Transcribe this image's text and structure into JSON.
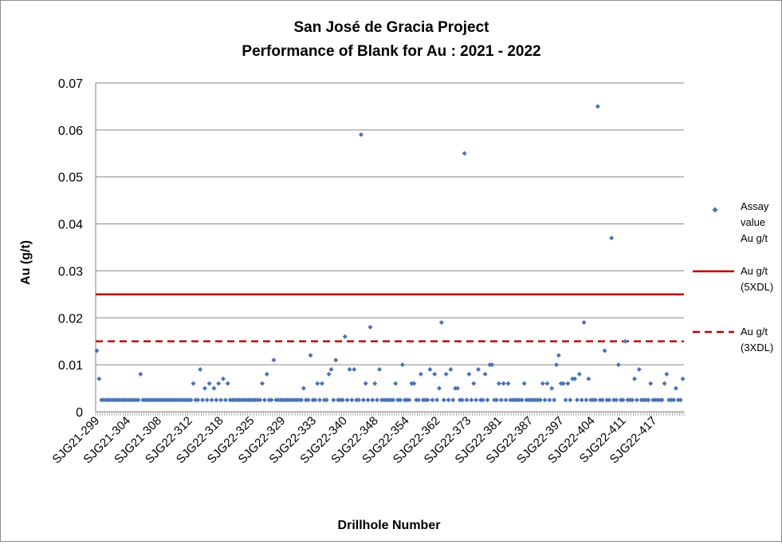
{
  "chart_data": {
    "type": "scatter",
    "title": [
      "San José de Gracia Project",
      "Performance of Blank for Au : 2021 - 2022"
    ],
    "xlabel": "Drillhole Number",
    "ylabel": "Au (g/t)",
    "ylim": [
      0,
      0.07
    ],
    "yticks": [
      "0",
      "0.01",
      "0.02",
      "0.03",
      "0.04",
      "0.05",
      "0.06",
      "0.07"
    ],
    "x_tick_labels": [
      "SJG21-299",
      "SJG21-304",
      "SJG21-308",
      "SJG22-312",
      "SJG22-318",
      "SJG22-325",
      "SJG22-329",
      "SJG22-333",
      "SJG22-340",
      "SJG22-348",
      "SJG22-354",
      "SJG22-362",
      "SJG22-373",
      "SJG22-381",
      "SJG22-387",
      "SJG22-397",
      "SJG22-404",
      "SJG22-411",
      "SJG22-417"
    ],
    "grid": true,
    "legend_position": "right",
    "colors": {
      "assay": "#4a73b5",
      "limit": "#c00000",
      "grid": "#868686"
    },
    "series": [
      {
        "name": "Assay value Au g/t",
        "marker": "diamond",
        "baseline_value": 0.0025,
        "n_samples": 256,
        "x": [
          0,
          1,
          19,
          42,
          45,
          47,
          49,
          51,
          53,
          55,
          57,
          72,
          74,
          77,
          90,
          93,
          96,
          98,
          101,
          102,
          104,
          108,
          110,
          112,
          115,
          117,
          119,
          121,
          123,
          130,
          133,
          137,
          138,
          141,
          145,
          147,
          149,
          150,
          152,
          154,
          156,
          157,
          160,
          162,
          164,
          166,
          169,
          171,
          172,
          175,
          177,
          179,
          186,
          194,
          196,
          198,
          200,
          201,
          202,
          203,
          205,
          207,
          208,
          210,
          212,
          214,
          218,
          221,
          224,
          227,
          230,
          234,
          236,
          241,
          247,
          248,
          252,
          255
        ],
        "y": [
          0.013,
          0.007,
          0.008,
          0.006,
          0.009,
          0.005,
          0.006,
          0.005,
          0.006,
          0.007,
          0.006,
          0.006,
          0.008,
          0.011,
          0.005,
          0.012,
          0.006,
          0.006,
          0.008,
          0.009,
          0.011,
          0.016,
          0.009,
          0.009,
          0.059,
          0.006,
          0.018,
          0.006,
          0.009,
          0.006,
          0.01,
          0.006,
          0.006,
          0.008,
          0.009,
          0.008,
          0.005,
          0.019,
          0.008,
          0.009,
          0.005,
          0.005,
          0.055,
          0.008,
          0.006,
          0.009,
          0.008,
          0.01,
          0.01,
          0.006,
          0.006,
          0.006,
          0.006,
          0.006,
          0.006,
          0.005,
          0.01,
          0.012,
          0.006,
          0.006,
          0.006,
          0.007,
          0.007,
          0.008,
          0.019,
          0.007,
          0.065,
          0.013,
          0.037,
          0.01,
          0.015,
          0.007,
          0.009,
          0.006,
          0.006,
          0.008,
          0.005,
          0.007
        ]
      },
      {
        "name": "Au g/t (5XDL)",
        "style": "solid",
        "value": 0.025
      },
      {
        "name": "Au g/t (3XDL)",
        "style": "dashed",
        "value": 0.015
      }
    ],
    "legend_entries": [
      [
        "Assay",
        "value",
        "Au g/t"
      ],
      [
        "Au g/t",
        "(5XDL)"
      ],
      [
        "Au g/t",
        "(3XDL)"
      ]
    ]
  }
}
